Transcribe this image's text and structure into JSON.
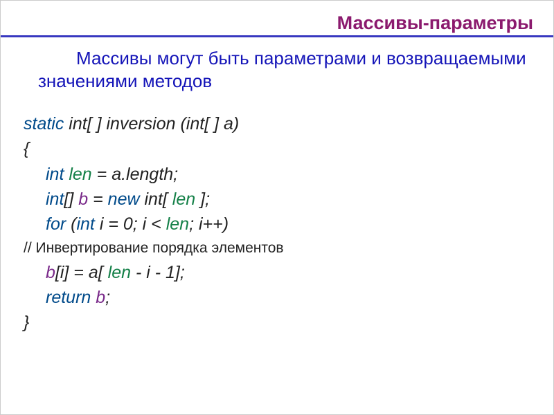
{
  "slide": {
    "title": "Массивы-параметры",
    "intro": "Массивы могут быть параметрами и возвращаемыми значениями методов",
    "code": {
      "sig_static": "static",
      "sig_rest": " int[ ] inversion (int[ ] a)",
      "brace_open": "{",
      "line_len_int": "int",
      "line_len_name": " len",
      "line_len_rest": " = a.length;",
      "line_b_int": "int",
      "line_b_brackets": "[]",
      "line_b_name": " b",
      "line_b_eq": " = ",
      "line_b_new": "new",
      "line_b_decl": " int[ ",
      "line_b_len": "len",
      "line_b_end": " ];",
      "line_for_for": "for",
      "line_for_open": " (",
      "line_for_int": "int",
      "line_for_rest1": " i = 0; i < ",
      "line_for_len": "len",
      "line_for_rest2": "; i++)",
      "comment": "// Инвертирование порядка элементов",
      "line_assign_b": "b",
      "line_assign_mid1": "[i] = a[ ",
      "line_assign_len": "len",
      "line_assign_mid2": " - i - 1];",
      "line_return_kw": "return",
      "line_return_sp": " ",
      "line_return_b": "b",
      "line_return_end": ";",
      "brace_close": "}"
    },
    "colors": {
      "title": "#8b1a6e",
      "underline": "#3838c0",
      "intro": "#1414b8",
      "keyword": "#004a8a",
      "ident_len": "#148048",
      "ident_b": "#7a2a8a",
      "text": "#222222",
      "background": "#ffffff",
      "border": "#cccccc"
    },
    "typography": {
      "title_fontsize": 27,
      "intro_fontsize": 26,
      "code_fontsize": 25,
      "comment_fontsize": 21,
      "code_italic": true
    }
  }
}
